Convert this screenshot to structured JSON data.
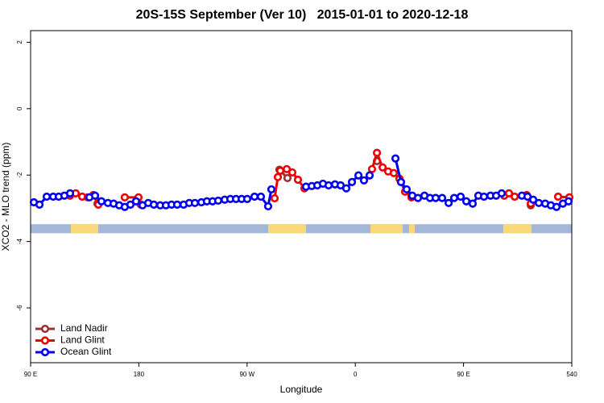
{
  "chart_data": {
    "type": "line",
    "title": "20S-15S September (Ver 10)   2015-01-01 to 2020-12-18",
    "xlabel": "Longitude",
    "ylabel": "XCO2 - MLO trend (ppm)",
    "xlim": [
      90,
      540
    ],
    "ylim": [
      -7.65,
      2.35
    ],
    "xticks": [
      {
        "value": 90,
        "label": "90 E"
      },
      180,
      {
        "value": 270,
        "label": "90 W"
      },
      {
        "value": 360,
        "label": "0"
      },
      {
        "value": 450,
        "label": "90 E"
      },
      540
    ],
    "yticks": [
      -6,
      -4,
      -2,
      0,
      2
    ],
    "legend": "bottom-left",
    "surface_strip": {
      "ylim": [
        -3.75,
        -3.48
      ],
      "ocean_color": "#a3b8d8",
      "land_color": "#f8d878",
      "land": [
        [
          123.5,
          146.3
        ],
        [
          287.5,
          319
        ],
        [
          372.6,
          399.4
        ],
        [
          404.7,
          409.4
        ],
        [
          483,
          506.5
        ]
      ]
    },
    "series": [
      {
        "name": "Land Nadir",
        "color": "#993333",
        "x": [
          145.6,
          null,
          296.9,
          303.6,
          null,
          378,
          null,
          505.9
        ],
        "values": [
          -2.86,
          null,
          -1.84,
          -2.09,
          null,
          -1.58,
          null,
          -2.91
        ]
      },
      {
        "name": "Land Glint",
        "color": "#ee0000",
        "x": [
          122.8,
          127.5,
          132.9,
          137.5,
          142.2,
          146.3,
          null,
          168.3,
          179.7,
          181.7,
          null,
          292.9,
          295.6,
          297.6,
          303,
          307.6,
          312.3,
          317.7,
          null,
          373.9,
          378,
          382.7,
          387.3,
          392,
          396.7,
          401.4,
          406.7,
          null,
          483.8,
          487.8,
          492.5,
          502.5,
          505.9,
          null,
          528.6,
          538
        ],
        "values": [
          -2.62,
          -2.55,
          -2.65,
          -2.67,
          -2.6,
          -2.89,
          null,
          -2.67,
          -2.67,
          -2.89,
          null,
          -2.7,
          -2.06,
          -1.87,
          -1.82,
          -1.92,
          -2.14,
          -2.4,
          null,
          -1.82,
          -1.33,
          -1.77,
          -1.89,
          -1.94,
          -2.11,
          -2.5,
          -2.67,
          null,
          -2.62,
          -2.55,
          -2.65,
          -2.6,
          -2.86,
          null,
          -2.65,
          -2.67
        ]
      },
      {
        "name": "Ocean Glint",
        "color": "#0000ee",
        "x": [
          92.7,
          97.4,
          103.4,
          108.8,
          113.4,
          118.1,
          122.8,
          null,
          138.9,
          143.6,
          148.9,
          154.3,
          159,
          163.7,
          168.3,
          173,
          177.7,
          183.1,
          187.8,
          192.5,
          197.8,
          202.5,
          207.2,
          211.9,
          217.2,
          221.9,
          226.6,
          232,
          236.6,
          241.3,
          246,
          251.4,
          256.1,
          260.8,
          265.5,
          270.1,
          276.2,
          281.5,
          287.5,
          290.2,
          null,
          319,
          323.8,
          328.4,
          333.1,
          337.8,
          343.1,
          347.8,
          352.5,
          357.2,
          362.6,
          367.2,
          371.9,
          null,
          393.4,
          398,
          402.7,
          407.4,
          412.1,
          417.5,
          422.1,
          426.8,
          432.2,
          437.6,
          442.2,
          447.6,
          452.3,
          457.6,
          462.3,
          467,
          472.4,
          477.1,
          481.7,
          null,
          498.5,
          503.2,
          507.9,
          512.6,
          517.9,
          522.6,
          527.3,
          532.6,
          537.3
        ],
        "values": [
          -2.82,
          -2.89,
          -2.65,
          -2.65,
          -2.65,
          -2.62,
          -2.55,
          null,
          -2.67,
          -2.62,
          -2.79,
          -2.84,
          -2.86,
          -2.91,
          -2.96,
          -2.89,
          -2.79,
          -2.91,
          -2.84,
          -2.89,
          -2.91,
          -2.91,
          -2.89,
          -2.89,
          -2.89,
          -2.84,
          -2.84,
          -2.82,
          -2.79,
          -2.79,
          -2.77,
          -2.74,
          -2.72,
          -2.72,
          -2.72,
          -2.72,
          -2.65,
          -2.65,
          -2.94,
          -2.43,
          null,
          -2.35,
          -2.33,
          -2.31,
          -2.26,
          -2.31,
          -2.28,
          -2.31,
          -2.4,
          -2.21,
          -2.01,
          -2.16,
          -2.01,
          null,
          -1.5,
          -2.21,
          -2.43,
          -2.62,
          -2.69,
          -2.62,
          -2.69,
          -2.69,
          -2.69,
          -2.84,
          -2.69,
          -2.65,
          -2.79,
          -2.86,
          -2.62,
          -2.65,
          -2.62,
          -2.62,
          -2.55,
          null,
          -2.62,
          -2.65,
          -2.74,
          -2.84,
          -2.86,
          -2.91,
          -2.96,
          -2.86,
          -2.79
        ]
      }
    ]
  }
}
